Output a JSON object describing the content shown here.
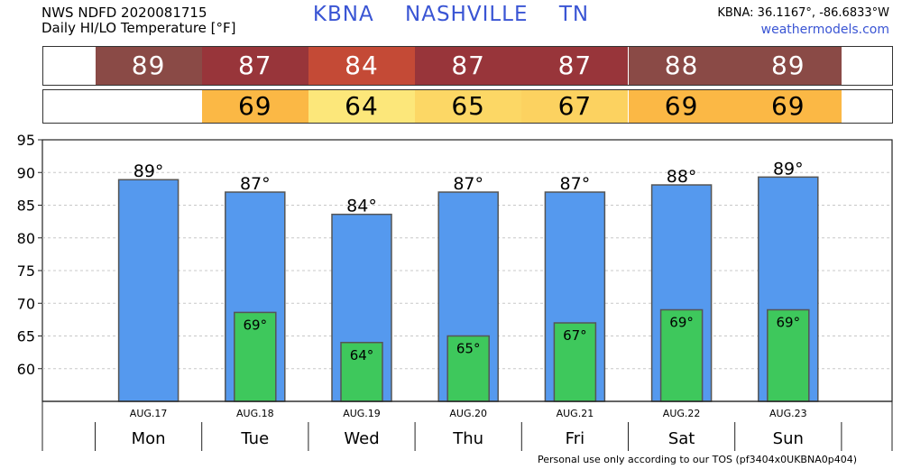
{
  "header": {
    "line1": "NWS NDFD 2020081715",
    "line2": "Daily HI/LO Temperature [°F]",
    "station": "KBNA",
    "city": "NASHVILLE",
    "state": "TN",
    "coords": "KBNA: 36.1167°, -86.6833°W",
    "site": "weathermodels.com"
  },
  "colors": {
    "hi_bar": "#5599ee",
    "lo_bar": "#3ec85c",
    "hi_strip": [
      "#8a4a46",
      "#98353a",
      "#c44a36",
      "#98353a",
      "#98353a",
      "#8a4a46",
      "#8a4a46"
    ],
    "lo_strip": [
      "#ffffff",
      "#fbb845",
      "#fce77a",
      "#fcd765",
      "#fcd260",
      "#fbb845",
      "#fbb845"
    ]
  },
  "chart_data": {
    "type": "bar",
    "categories": [
      "Mon",
      "Tue",
      "Wed",
      "Thu",
      "Fri",
      "Sat",
      "Sun"
    ],
    "dates": [
      "AUG.17",
      "AUG.18",
      "AUG.19",
      "AUG.20",
      "AUG.21",
      "AUG.22",
      "AUG.23"
    ],
    "series": [
      {
        "values": [
          89,
          87,
          84,
          87,
          87,
          88,
          89
        ]
      },
      {
        "values": [
          null,
          69,
          64,
          65,
          67,
          69,
          69
        ]
      }
    ],
    "hi_bar_values": [
      88.9,
      87.0,
      83.6,
      87.0,
      87.0,
      88.1,
      89.3
    ],
    "lo_bar_values": [
      null,
      68.6,
      64.0,
      65.0,
      67.0,
      69.0,
      69.0
    ],
    "hi_labels": [
      "89°",
      "87°",
      "84°",
      "87°",
      "87°",
      "88°",
      "89°"
    ],
    "lo_labels": [
      "",
      "69°",
      "64°",
      "65°",
      "67°",
      "69°",
      "69°"
    ],
    "ylim": [
      55,
      95
    ],
    "yticks": [
      60,
      65,
      70,
      75,
      80,
      85,
      90,
      95
    ],
    "grid": true
  },
  "footer": "Personal use only according to our TOS (pf3404x0UKBNA0p404)"
}
